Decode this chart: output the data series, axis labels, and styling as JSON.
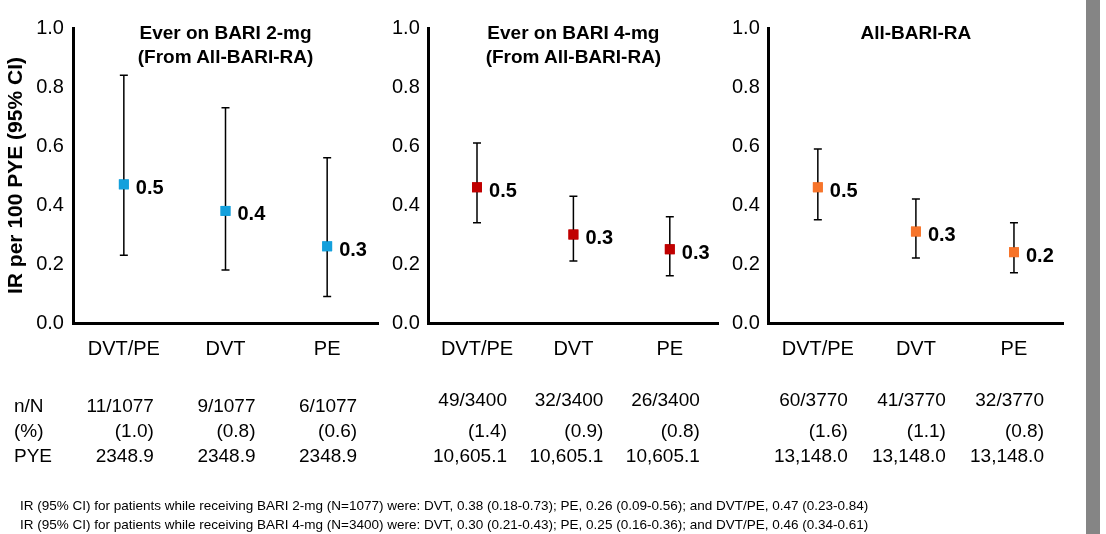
{
  "chart_data": [
    {
      "type": "scatter",
      "title": "Ever on BARI 2-mg\n(From All-BARI-RA)",
      "ylabel": "IR per 100 PYE (95% CI)",
      "categories": [
        "DVT/PE",
        "DVT",
        "PE"
      ],
      "series": [
        {
          "color": "#14a0dc",
          "values": [
            0.47,
            0.38,
            0.26
          ],
          "errors": [
            [
              0.23,
              0.84
            ],
            [
              0.18,
              0.73
            ],
            [
              0.09,
              0.56
            ]
          ],
          "value_labels": [
            "0.5",
            "0.4",
            "0.3"
          ]
        }
      ],
      "marker": "square",
      "ylim": [
        0,
        1
      ],
      "yticks": [
        {
          "value": 0,
          "label": "0.0"
        },
        {
          "value": 0.2,
          "label": "0.2"
        },
        {
          "value": 0.4,
          "label": "0.4"
        },
        {
          "value": 0.6,
          "label": "0.6"
        },
        {
          "value": 0.8,
          "label": "0.8"
        },
        {
          "value": 1,
          "label": "1.0"
        }
      ],
      "annotations": [
        "n/N",
        "(%)",
        "PYE",
        "11/1077",
        "(1.0)",
        "2348.9",
        "9/1077",
        "(0.8)",
        "2348.9",
        "6/1077",
        "(0.6)",
        "2348.9"
      ]
    },
    {
      "type": "scatter",
      "title": "Ever on BARI 4-mg\n(From All-BARI-RA)",
      "categories": [
        "DVT/PE",
        "DVT",
        "PE"
      ],
      "series": [
        {
          "color": "#c00000",
          "values": [
            0.46,
            0.3,
            0.25
          ],
          "errors": [
            [
              0.34,
              0.61
            ],
            [
              0.21,
              0.43
            ],
            [
              0.16,
              0.36
            ]
          ],
          "value_labels": [
            "0.5",
            "0.3",
            "0.3"
          ]
        }
      ],
      "marker": "square",
      "ylim": [
        0,
        1
      ],
      "yticks": [
        {
          "value": 0,
          "label": "0.0"
        },
        {
          "value": 0.2,
          "label": "0.2"
        },
        {
          "value": 0.4,
          "label": "0.4"
        },
        {
          "value": 0.6,
          "label": "0.6"
        },
        {
          "value": 0.8,
          "label": "0.8"
        },
        {
          "value": 1,
          "label": "1.0"
        }
      ],
      "annotations": [
        "49/3400",
        "(1.4)",
        "10,605.1",
        "32/3400",
        "(0.9)",
        "10,605.1",
        "26/3400",
        "(0.8)",
        "10,605.1"
      ]
    },
    {
      "type": "scatter",
      "title": "All-BARI-RA",
      "categories": [
        "DVT/PE",
        "DVT",
        "PE"
      ],
      "series": [
        {
          "color": "#f7742a",
          "values": [
            0.46,
            0.31,
            0.24
          ],
          "errors": [
            [
              0.35,
              0.59
            ],
            [
              0.22,
              0.42
            ],
            [
              0.17,
              0.34
            ]
          ],
          "value_labels": [
            "0.5",
            "0.3",
            "0.2"
          ]
        }
      ],
      "marker": "square",
      "ylim": [
        0,
        1
      ],
      "yticks": [
        {
          "value": 0,
          "label": "0.0"
        },
        {
          "value": 0.2,
          "label": "0.2"
        },
        {
          "value": 0.4,
          "label": "0.4"
        },
        {
          "value": 0.6,
          "label": "0.6"
        },
        {
          "value": 0.8,
          "label": "0.8"
        },
        {
          "value": 1,
          "label": "1.0"
        }
      ],
      "annotations": [
        "60/3770",
        "(1.6)",
        "13,148.0",
        "41/3770",
        "(1.1)",
        "13,148.0",
        "32/3770",
        "(0.8)",
        "13,148.0",
        "IR (95% CI) for patients while receiving BARI 2-mg (N=1077) were: DVT, 0.38 (0.18-0.73); PE, 0.26 (0.09-0.56); and DVT/PE, 0.47 (0.23-0.84)",
        "IR (95% CI) for patients while receiving BARI 4-mg (N=3400) were: DVT, 0.30 (0.21-0.43); PE, 0.25 (0.16-0.36); and DVT/PE, 0.46 (0.34-0.61)"
      ]
    }
  ]
}
